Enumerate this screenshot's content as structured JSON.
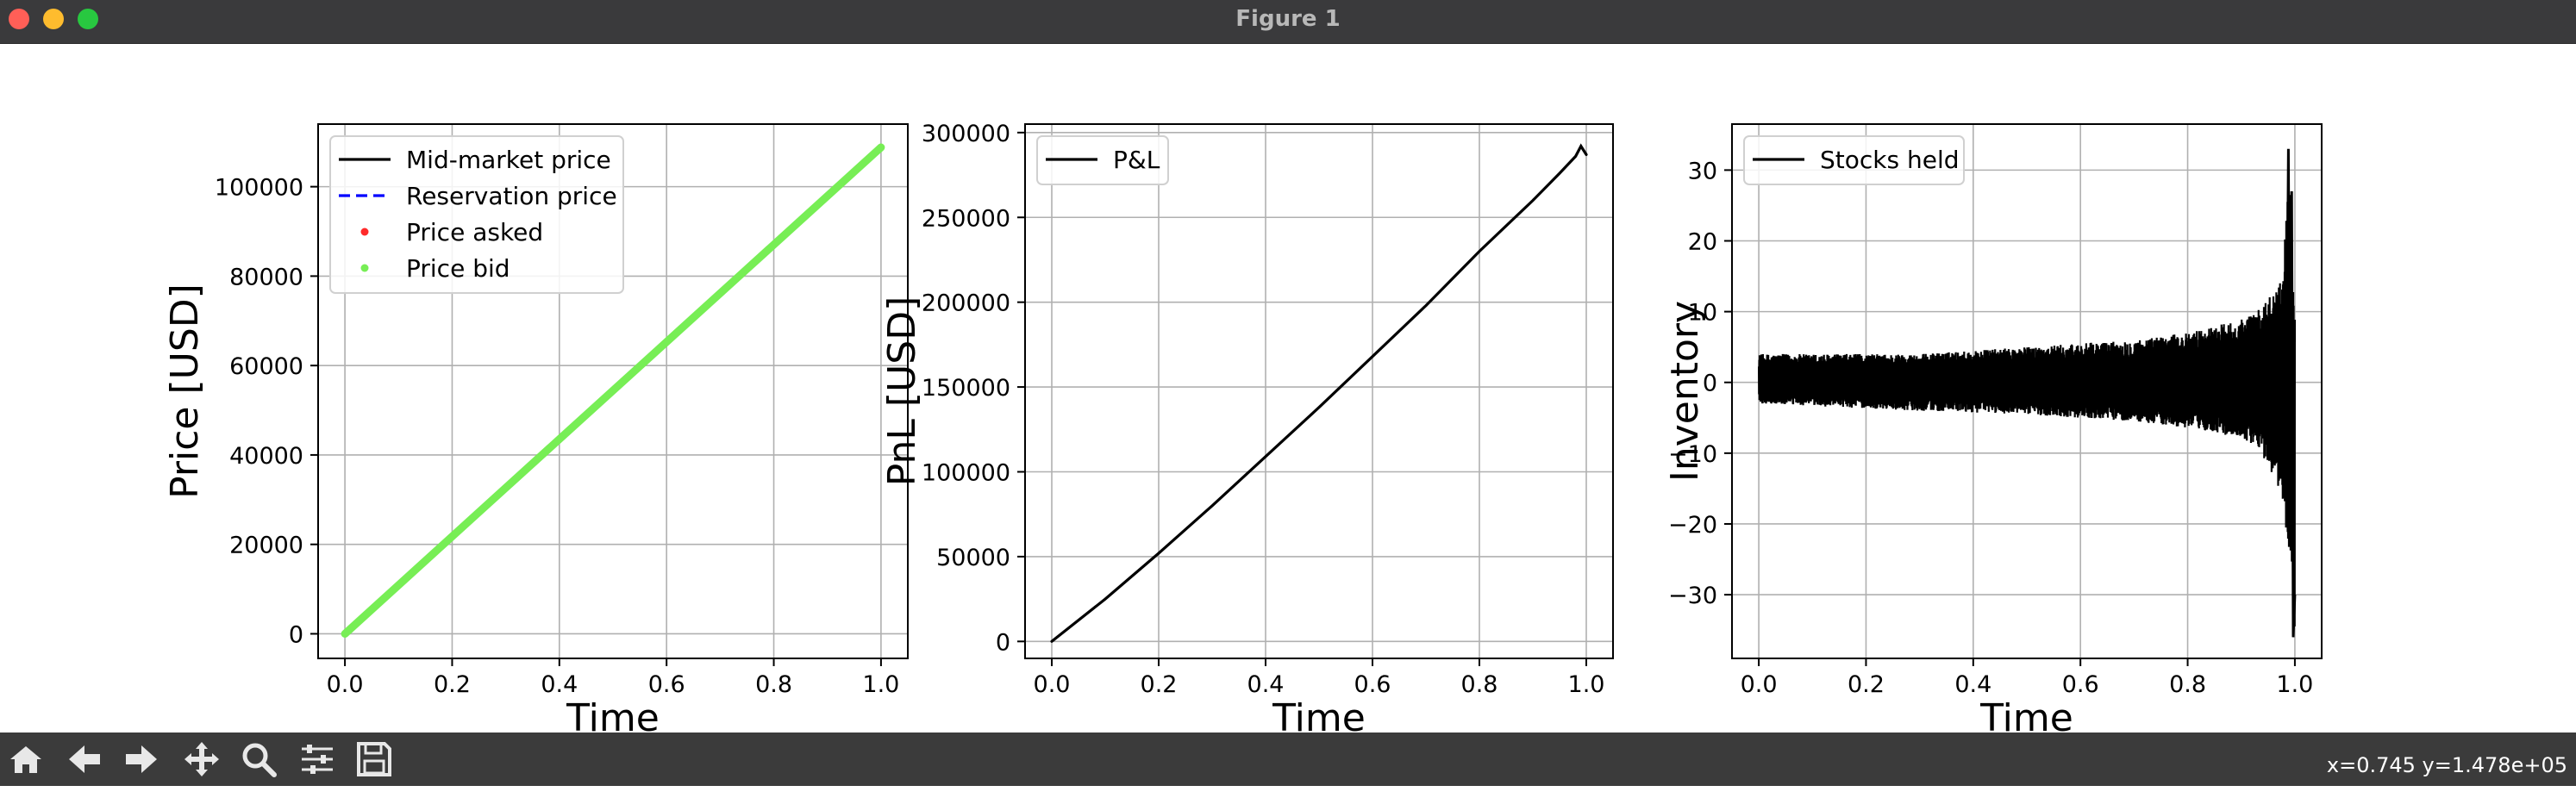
{
  "window": {
    "title": "Figure 1"
  },
  "toolbar": {
    "buttons": [
      {
        "name": "home-icon"
      },
      {
        "name": "back-icon"
      },
      {
        "name": "forward-icon"
      },
      {
        "name": "pan-icon"
      },
      {
        "name": "zoom-icon"
      },
      {
        "name": "configure-subplots-icon"
      },
      {
        "name": "save-icon"
      }
    ],
    "coords": "x=0.745 y=1.478e+05"
  },
  "chart_data": [
    {
      "type": "line",
      "xlabel": "Time",
      "ylabel": "Price [USD]",
      "xlim": [
        -0.05,
        1.05
      ],
      "ylim": [
        -5500,
        114000
      ],
      "xticks": [
        0.0,
        0.2,
        0.4,
        0.6,
        0.8,
        1.0
      ],
      "xtick_labels": [
        "0.0",
        "0.2",
        "0.4",
        "0.6",
        "0.8",
        "1.0"
      ],
      "yticks": [
        0,
        20000,
        40000,
        60000,
        80000,
        100000
      ],
      "ytick_labels": [
        "0",
        "20000",
        "40000",
        "60000",
        "80000",
        "100000"
      ],
      "grid": true,
      "legend_placement": "upper-left",
      "legend": [
        {
          "label": "Mid-market price",
          "color": "#000000",
          "style": "solid"
        },
        {
          "label": "Reservation price",
          "color": "#0000ff",
          "style": "dashed"
        },
        {
          "label": "Price asked",
          "color": "#ff2a2a",
          "style": "dot"
        },
        {
          "label": "Price bid",
          "color": "#77ee55",
          "style": "dot"
        }
      ],
      "series": [
        {
          "name": "Price bid",
          "color": "#77ee55",
          "x": [
            0.0,
            0.25,
            0.5,
            0.75,
            1.0
          ],
          "y": [
            0,
            27200,
            54400,
            81600,
            108800
          ]
        }
      ]
    },
    {
      "type": "line",
      "xlabel": "Time",
      "ylabel": "PnL [USD]",
      "xlim": [
        -0.05,
        1.05
      ],
      "ylim": [
        -10000,
        305000
      ],
      "xticks": [
        0.0,
        0.2,
        0.4,
        0.6,
        0.8,
        1.0
      ],
      "xtick_labels": [
        "0.0",
        "0.2",
        "0.4",
        "0.6",
        "0.8",
        "1.0"
      ],
      "yticks": [
        0,
        50000,
        100000,
        150000,
        200000,
        250000,
        300000
      ],
      "ytick_labels": [
        "0",
        "50000",
        "100000",
        "150000",
        "200000",
        "250000",
        "300000"
      ],
      "grid": true,
      "legend_placement": "upper-left",
      "legend": [
        {
          "label": "P&L",
          "color": "#000000",
          "style": "solid"
        }
      ],
      "series": [
        {
          "name": "P&L",
          "color": "#000000",
          "x": [
            0.0,
            0.1,
            0.2,
            0.3,
            0.4,
            0.5,
            0.6,
            0.7,
            0.8,
            0.9,
            0.95,
            0.98,
            0.99,
            1.0
          ],
          "y": [
            0,
            25000,
            52000,
            80000,
            109000,
            138000,
            168000,
            198000,
            230000,
            260000,
            276000,
            286000,
            292000,
            287000
          ]
        }
      ]
    },
    {
      "type": "line",
      "xlabel": "Time",
      "ylabel": "Inventory",
      "xlim": [
        -0.05,
        1.05
      ],
      "ylim": [
        -39,
        36.5
      ],
      "xticks": [
        0.0,
        0.2,
        0.4,
        0.6,
        0.8,
        1.0
      ],
      "xtick_labels": [
        "0.0",
        "0.2",
        "0.4",
        "0.6",
        "0.8",
        "1.0"
      ],
      "yticks": [
        -30,
        -20,
        -10,
        0,
        10,
        20,
        30
      ],
      "ytick_labels": [
        "−30",
        "−20",
        "−10",
        "0",
        "10",
        "20",
        "30"
      ],
      "grid": true,
      "legend_placement": "upper-left",
      "legend": [
        {
          "label": "Stocks held",
          "color": "#000000",
          "style": "solid"
        }
      ],
      "series": [
        {
          "name": "Stocks held",
          "color": "#000000",
          "envelope_t": [
            0.0,
            0.3,
            0.5,
            0.7,
            0.8,
            0.85,
            0.9,
            0.93,
            0.95,
            0.97,
            0.98,
            0.99,
            1.0
          ],
          "envelope_upper": [
            4,
            4,
            5,
            6,
            7,
            8,
            9,
            10,
            12,
            14,
            18,
            33,
            10
          ],
          "envelope_lower": [
            -3,
            -4,
            -4.5,
            -5.5,
            -6.5,
            -7,
            -8,
            -9,
            -12,
            -15,
            -19,
            -25,
            -36
          ]
        }
      ]
    }
  ]
}
